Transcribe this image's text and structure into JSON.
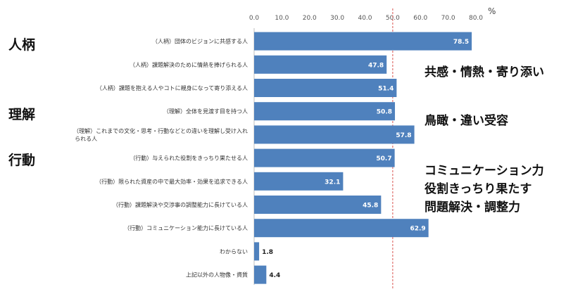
{
  "chart_data": {
    "type": "bar",
    "orientation": "horizontal",
    "axis_unit": "%",
    "xlim": [
      0,
      80
    ],
    "ticks": [
      "0.0",
      "10.0",
      "20.0",
      "30.0",
      "40.0",
      "50.0",
      "60.0",
      "70.0",
      "80.0"
    ],
    "reference_line": 50,
    "grid": false,
    "categories": [
      [
        "（人柄）団体のビジョンに共感する人"
      ],
      [
        "（人柄）課題解決のために情熱を捧げられる人"
      ],
      [
        "（人柄）課題を抱える人やコトに親身になって寄り添える人"
      ],
      [
        "（理解）全体を見渡す目を持つ人"
      ],
      [
        "（理解）これまでの文化・思考・行動などとの違いを理解し受け入れ",
        "られる人"
      ],
      [
        "（行動）与えられた役割をきっちり果たせる人"
      ],
      [
        "（行動）限られた資産の中で最大効率・効果を追求できる人"
      ],
      [
        "（行動）課題解決や交渉事の調整能力に長けている人"
      ],
      [
        "（行動）コミュニケーション能力に長けている人"
      ],
      [
        "わからない"
      ],
      [
        "上記以外の人物像・資質"
      ]
    ],
    "values": [
      78.5,
      47.8,
      51.4,
      50.8,
      57.8,
      50.7,
      32.1,
      45.8,
      62.9,
      1.8,
      4.4
    ],
    "value_labels": [
      "78.5",
      "47.8",
      "51.4",
      "50.8",
      "57.8",
      "50.7",
      "32.1",
      "45.8",
      "62.9",
      "1.8",
      "4.4"
    ]
  },
  "groups": [
    "人柄",
    "理解",
    "行動"
  ],
  "annotations": [
    "共感・情熱・寄り添い",
    "鳥瞰・違い受容",
    "コミュニケーション力",
    "役割きっちり果たす",
    "問題解決・調整力"
  ],
  "colors": {
    "bar": "#4f81bd",
    "reference_line": "#d9534f",
    "axis": "#bfbfbf"
  }
}
